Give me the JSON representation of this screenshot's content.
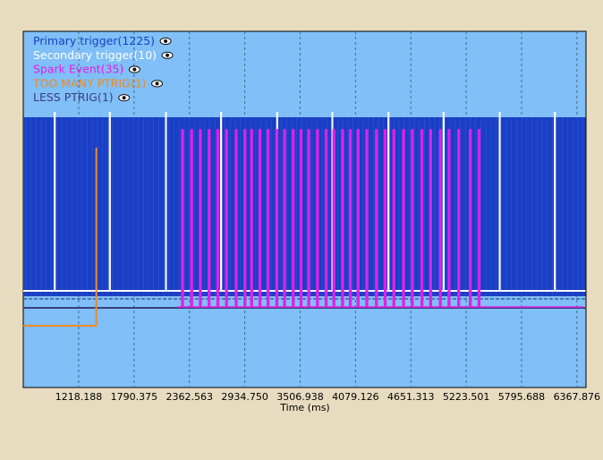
{
  "colors": {
    "page_background": "#e8dcc0",
    "plot_background": "#80bff8",
    "primary_trigger": "#1a3fc4",
    "secondary_trigger": "#ffffff",
    "spark_event": "#e020e8",
    "too_many_ptrig": "#f08a20",
    "less_ptrig": "#3a3f7a",
    "grid": "#4a6a8a"
  },
  "chart_data": {
    "type": "line",
    "xlabel": "Time (ms)",
    "ylabel": "",
    "xlim": [
      645.0,
      6462.0
    ],
    "grid": {
      "vertical": true,
      "horizontal": false
    },
    "x_ticks": [
      1218.188,
      1790.375,
      2362.563,
      2934.75,
      3506.938,
      4079.126,
      4651.313,
      5223.501,
      5795.688,
      6367.876
    ],
    "x_tick_labels": [
      "1218.188",
      "1790.375",
      "2362.563",
      "2934.750",
      "3506.938",
      "4079.126",
      "4651.313",
      "5223.501",
      "5795.688",
      "6367.876"
    ],
    "legend": {
      "placement": "top-left",
      "icon": "eye-icon",
      "entries": [
        {
          "label": "Primary trigger(1225)",
          "color": "#1a3fc4"
        },
        {
          "label": "Secondary trigger(10)",
          "color": "#ffffff"
        },
        {
          "label": "Spark Event(35)",
          "color": "#e020e8"
        },
        {
          "label": "TOO MANY PTRIG(1)",
          "color": "#f08a20"
        },
        {
          "label": "LESS PTRIG(1)",
          "color": "#3a3f7a"
        }
      ]
    },
    "series": [
      {
        "name": "Primary trigger(1225)",
        "kind": "dense-pulse-train",
        "x_start": 645.0,
        "x_end": 6457.0,
        "count": 1225
      },
      {
        "name": "Secondary trigger(10)",
        "kind": "pulses",
        "x": [
          970,
          1540,
          2120,
          2690,
          3270,
          3840,
          4420,
          4990,
          5570,
          6140
        ]
      },
      {
        "name": "Spark Event(35)",
        "kind": "pulses",
        "x": [
          2285,
          2380,
          2470,
          2560,
          2650,
          2740,
          2840,
          2930,
          3000,
          3085,
          3170,
          3260,
          3340,
          3430,
          3510,
          3590,
          3680,
          3770,
          3850,
          3940,
          4020,
          4100,
          4190,
          4290,
          4380,
          4470,
          4570,
          4660,
          4760,
          4850,
          4950,
          5040,
          5140,
          5260,
          5350
        ]
      },
      {
        "name": "TOO MANY PTRIG(1)",
        "kind": "step",
        "x_step": 1400
      },
      {
        "name": "LESS PTRIG(1)",
        "kind": "baseline"
      }
    ]
  }
}
